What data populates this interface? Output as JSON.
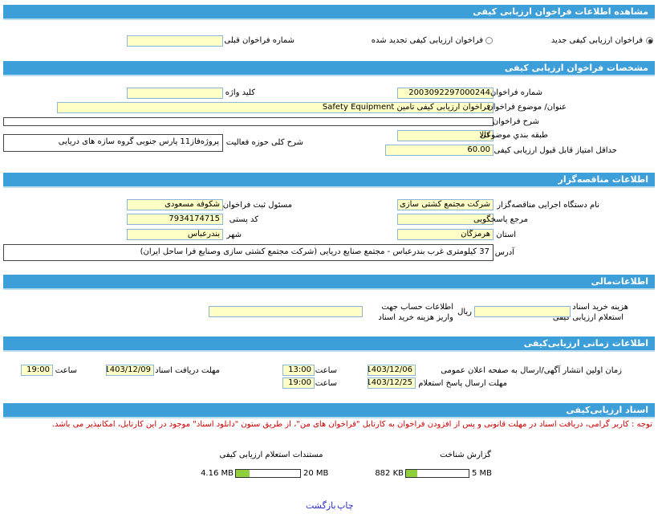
{
  "header": {
    "title": "مشاهده اطلاعات فراخوان ارزیابی کیفی"
  },
  "options": {
    "new": "فراخوان  ارزیابی  کیفی جدید",
    "renewed": "فراخوان  ارزیابی  کیفی تجدید شده",
    "previous_number_label": "شماره فراخوان  قبلی"
  },
  "spec": {
    "title": "مشخصات فراخوان ارزیابی کیفی",
    "number_label": "شماره فراخوان",
    "number": "2003092297000244",
    "keyword_label": "کلید واژه",
    "subject_label": "عنوان/ موضوع فراخوان",
    "subject": "فراخوان ارزیابی کیفی تامین Safety  Equipment",
    "description_label": "شرح فراخوان",
    "category_label": "طبقه بندي  موضوعی",
    "category": "کالا",
    "activity_label": "شرح  کلی  حوزه  فعالیت",
    "activity": "پروژه‌فاز11 پارس  جنوبی گروه سازه های  دریایی",
    "min_score_label": "حداقل  امتیاز  قابل  قبول  ارزیابی کیفی",
    "min_score": "60.00"
  },
  "organizer": {
    "title": "اطلاعات مناقصه‌گزار",
    "org_label": "نام دستگاه اجرایی  مناقصه‌گزار",
    "org": "شرکت مجتمع کشتی سازی",
    "registrar_label": "مسئول ثبت فراخوان",
    "registrar": "شکوفه مسعودی",
    "reference_label": "مرجع  پاسخگویی",
    "postal_label": "کد  پستی",
    "postal_code": "7934174715",
    "province_label": "استان",
    "province": "هرمزگان",
    "city_label": "شهر",
    "city": "بندرعباس",
    "address_label": "آدرس",
    "address": "37  کیلومتری غرب  بندرعباس - مجتمع  صنایع  دریایی (شرکت  مجتمع  کشتی  سازی  وصنایع فرا ساحل ایران)"
  },
  "financial": {
    "title": "اطلاعات‌مالی",
    "fee_label_1": "هزینه خرید اسناد",
    "fee_label_2": "استعلام  ارزیابی کیفی",
    "currency": "ریال",
    "account_label_1": "اطلاعات حساب جهت",
    "account_label_2": "واریز  هزینه خرید اسناد"
  },
  "timing": {
    "title": "اطلاعات زمانی ارزیابی‌کیفی",
    "publish_label": "زمان اولین  انتشار آگهی/ارسال به  صفحه اعلان عمومی",
    "publish_date": "1403/12/06",
    "time_label": "ساعت",
    "publish_time": "13:00",
    "receive_label": "مهلت  دریافت اسناد",
    "receive_date": "1403/12/09",
    "receive_time": "19:00",
    "response_label": "مهلت ارسال پاسخ استعلام",
    "response_date": "1403/12/25",
    "response_time": "19:00"
  },
  "documents": {
    "title": "اسناد ارزیابی‌کیفی",
    "note": "توجه : کاربر گرامی، دریافت اسناد در مهلت قانونی و پس از افزودن فراخوان به کارتابل \"فراخوان های من\"، از طریق ستون \"دانلود اسناد\" موجود در این کارتابل، امکانپذیر می باشد.",
    "files": [
      {
        "label": "مستندات  استعلام  ارزیابی  کیفی",
        "max": "20 MB",
        "size": "4.16 MB"
      },
      {
        "label": "گزارش  شناخت",
        "max": "5 MB",
        "size": "882 KB"
      }
    ]
  },
  "footer": {
    "print": "چاپ",
    "back": "بازگشت"
  }
}
